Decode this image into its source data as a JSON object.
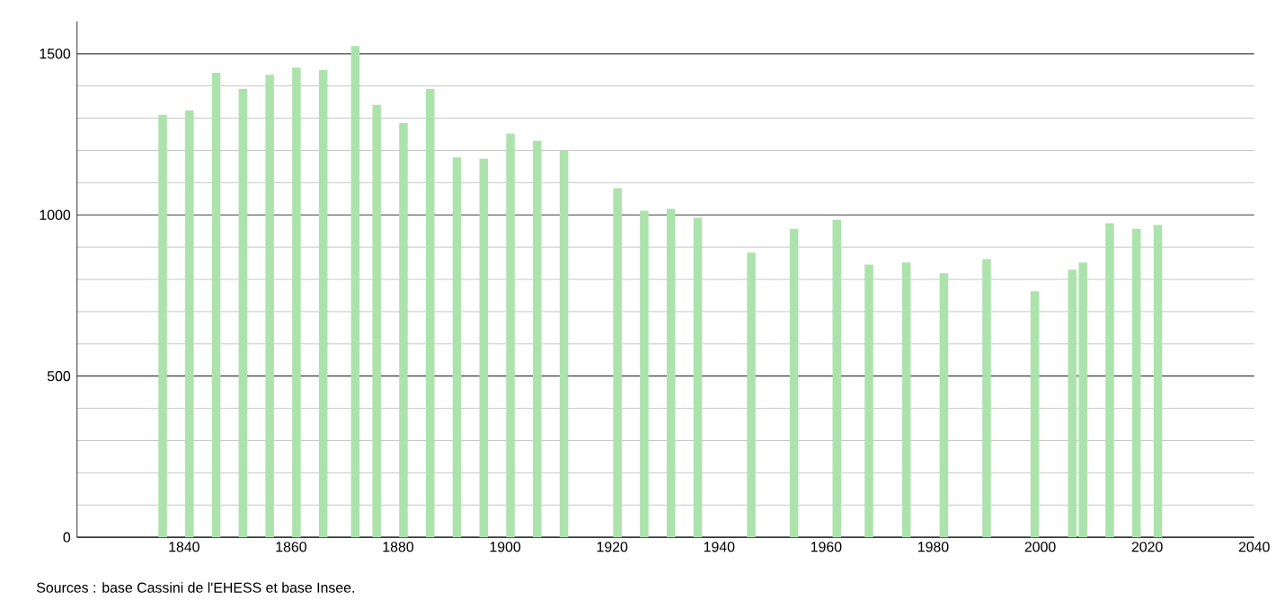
{
  "chart_data": {
    "type": "bar",
    "x": [
      1836,
      1841,
      1846,
      1851,
      1856,
      1861,
      1866,
      1872,
      1876,
      1881,
      1886,
      1891,
      1896,
      1901,
      1906,
      1911,
      1921,
      1926,
      1931,
      1936,
      1946,
      1954,
      1962,
      1968,
      1975,
      1982,
      1990,
      1999,
      2006,
      2008,
      2013,
      2018,
      2022
    ],
    "values": [
      1311,
      1324,
      1441,
      1391,
      1435,
      1457,
      1450,
      1524,
      1341,
      1285,
      1391,
      1178,
      1174,
      1252,
      1230,
      1200,
      1083,
      1013,
      1019,
      991,
      883,
      957,
      985,
      846,
      852,
      819,
      863,
      763,
      830,
      852,
      974,
      957,
      969
    ],
    "color": "#ace3ac",
    "xlim": [
      1820,
      2040
    ],
    "xticks": [
      1840,
      1860,
      1880,
      1900,
      1920,
      1940,
      1960,
      1980,
      2000,
      2020,
      2040
    ],
    "ylim": [
      0,
      1600
    ],
    "yticks": [
      0,
      500,
      1000,
      1500
    ],
    "grid": "y",
    "annotations": [
      "Sources : base Cassini de l'EHESS et base Insee."
    ]
  }
}
